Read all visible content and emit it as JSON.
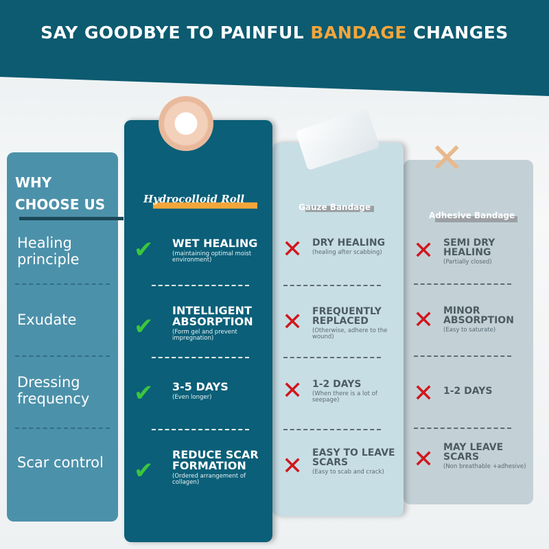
{
  "title": {
    "before": "SAY GOODBYE TO PAINFUL ",
    "highlight": "BANDAGE",
    "after": " CHANGES"
  },
  "colors": {
    "header": "#0c5b70",
    "accent": "#f4a63b",
    "check": "#3cc63c",
    "cross": "#d0171d"
  },
  "left": {
    "heading_1": "WHY",
    "heading_2": "CHOOSE US",
    "rows": [
      "Healing principle",
      "Exudate",
      "Dressing frequency",
      "Scar control"
    ]
  },
  "columns": [
    {
      "name": "Hydrocolloid Roll",
      "icon": "check-icon",
      "rows": [
        {
          "main": "WET HEALING",
          "sub": "(maintaining optimal moist environment)"
        },
        {
          "main": "INTELLIGENT ABSORPTION",
          "sub": "(Form gel and prevent impregnation)"
        },
        {
          "main": "3-5 DAYS",
          "sub": "(Even longer)"
        },
        {
          "main": "REDUCE SCAR FORMATION",
          "sub": "(Ordered arrangement of collagen)"
        }
      ]
    },
    {
      "name": "Gauze Bandage",
      "icon": "cross-icon",
      "rows": [
        {
          "main": "DRY HEALING",
          "sub": "(healing after scabbing)"
        },
        {
          "main": "FREQUENTLY REPLACED",
          "sub": "(Otherwise, adhere to the wound)"
        },
        {
          "main": "1-2 DAYS",
          "sub": "(When there is a lot of seepage)"
        },
        {
          "main": "EASY TO LEAVE SCARS",
          "sub": "(Easy to scab and crack)"
        }
      ]
    },
    {
      "name": "Adhesive Bandage",
      "icon": "cross-icon",
      "rows": [
        {
          "main": "SEMI DRY HEALING",
          "sub": "(Partially closed)"
        },
        {
          "main": "MINOR ABSORPTION",
          "sub": "(Easy to saturate)"
        },
        {
          "main": "1-2 DAYS",
          "sub": ""
        },
        {
          "main": "MAY LEAVE SCARS",
          "sub": "(Non breathable +adhesive)"
        }
      ]
    }
  ]
}
